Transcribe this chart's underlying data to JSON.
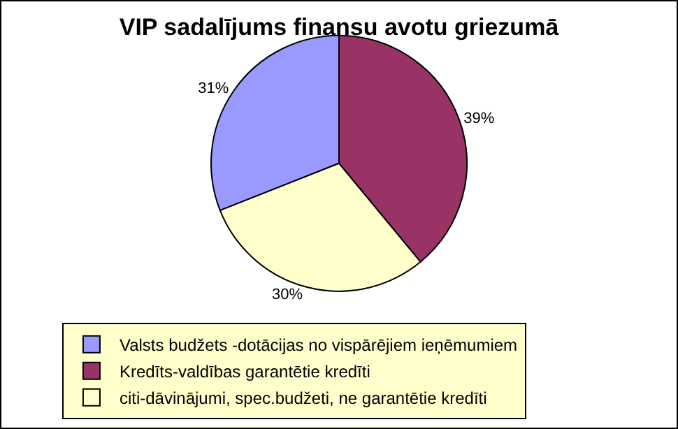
{
  "chart_data": {
    "type": "pie",
    "title": "VIP sadalījums finansu avotu griezumā",
    "categories": [
      "Valsts budžets -dotācijas no vispārējiem ieņēmumiem",
      "Kredīts-valdības garantētie kredīti",
      "citi-dāvinājumi, spec.budžeti, ne garantētie kredīti"
    ],
    "values": [
      31,
      39,
      30
    ],
    "value_labels": [
      "31%",
      "39%",
      "30%"
    ],
    "colors": [
      "#9999ff",
      "#993366",
      "#ffffcc"
    ],
    "legend": "bottom"
  }
}
